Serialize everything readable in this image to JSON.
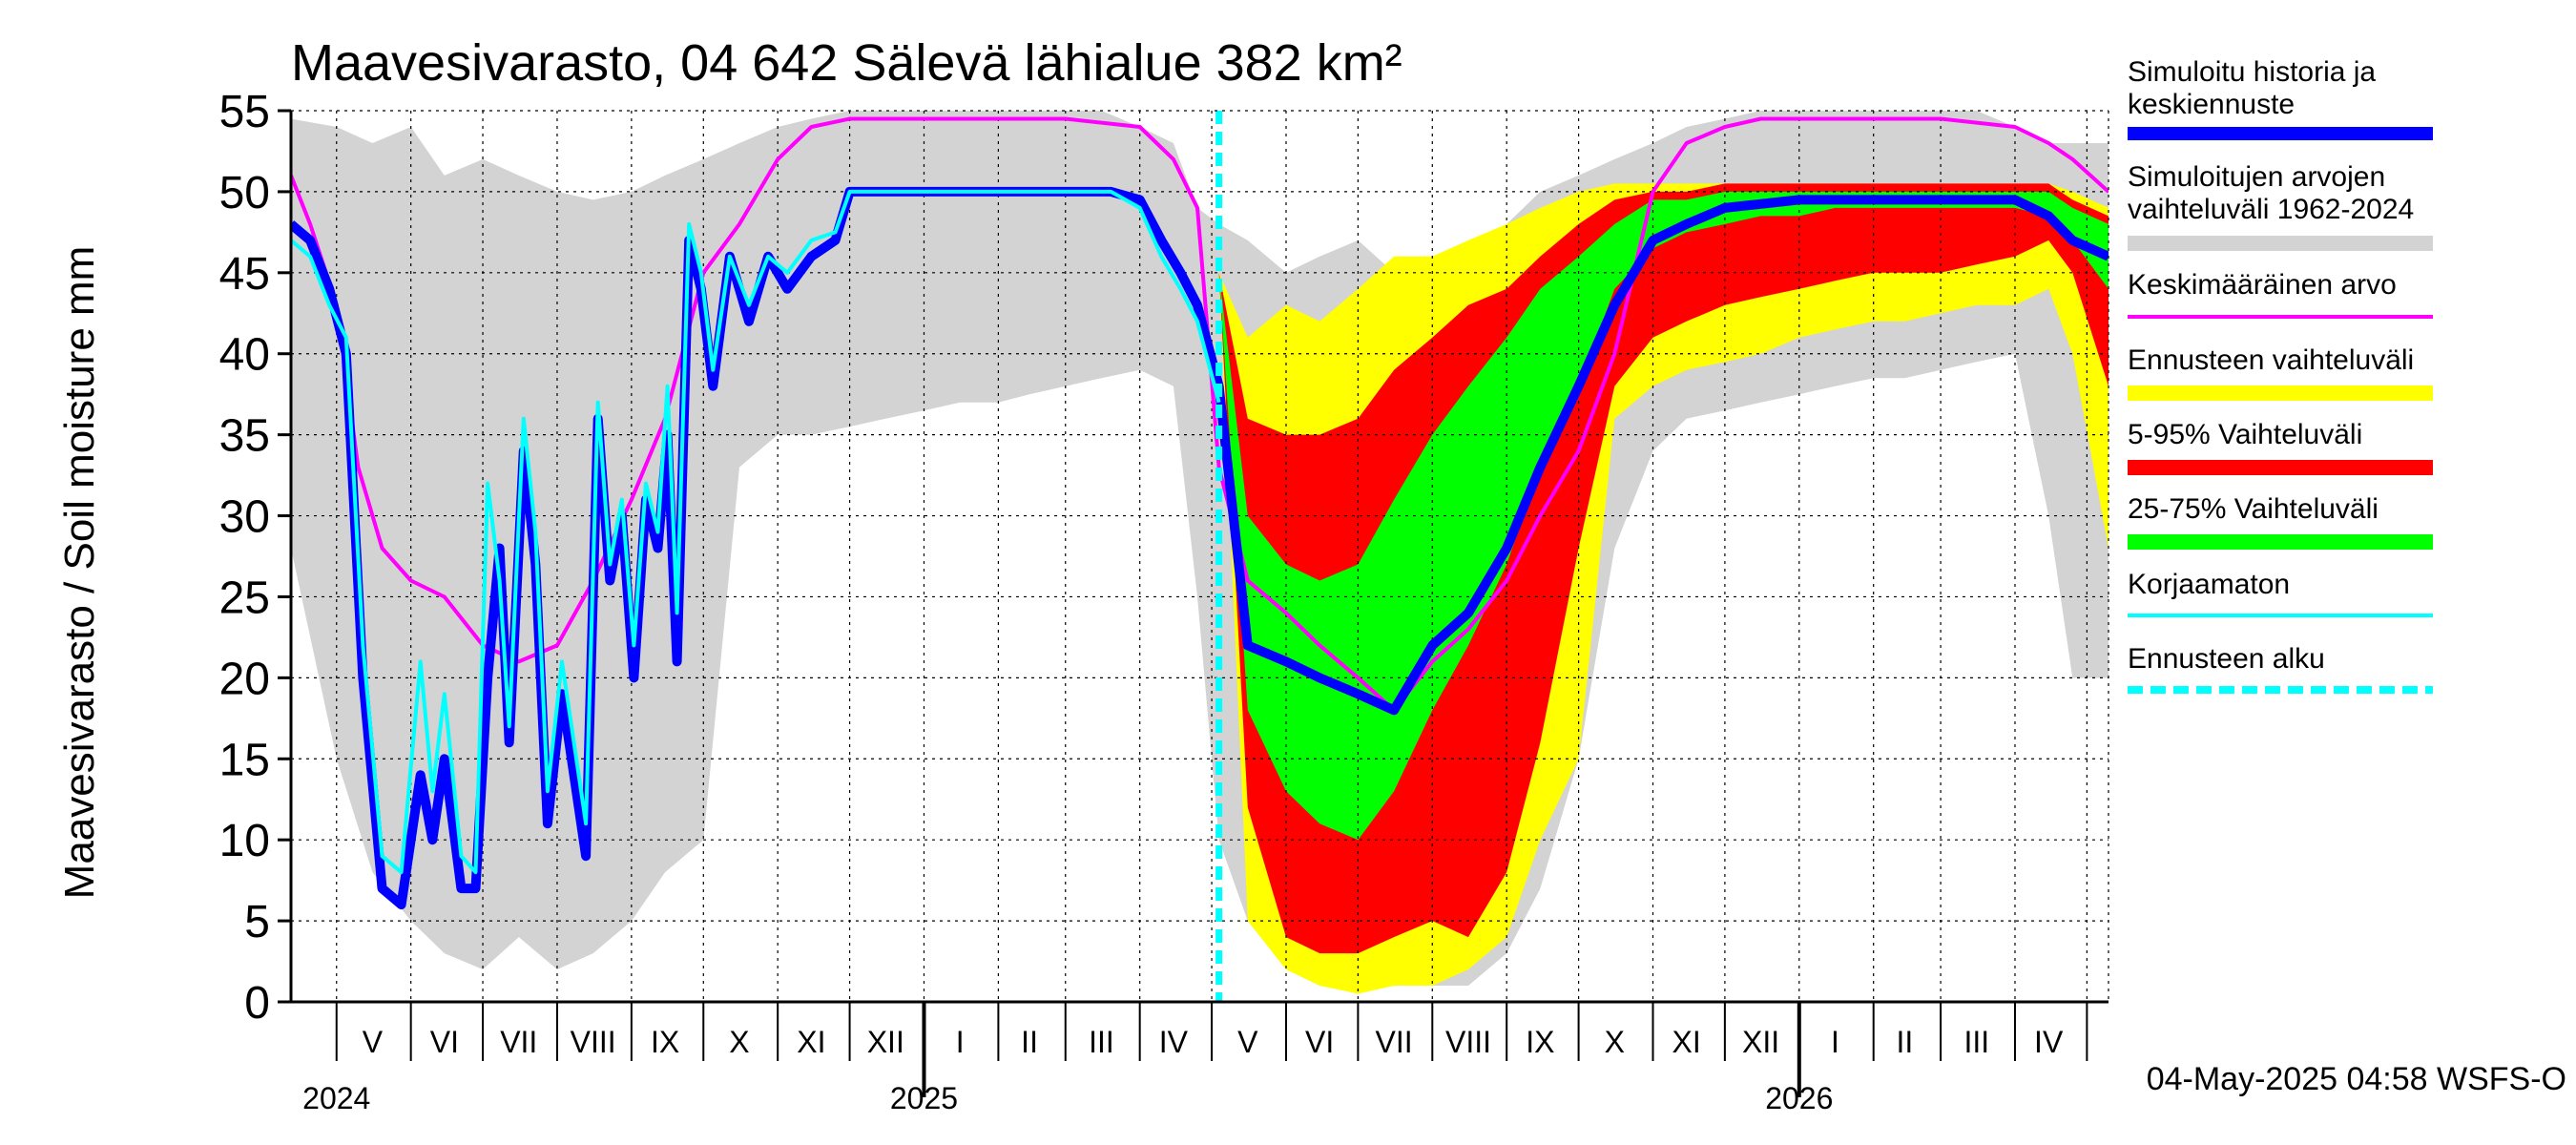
{
  "chart_data": {
    "type": "area",
    "title": "Maavesivarasto, 04 642 Sälevä lähialue 382 km²",
    "ylabel": "Maavesivarasto / Soil moisture   mm",
    "ylim": [
      0,
      55
    ],
    "yticks": [
      0,
      5,
      10,
      15,
      20,
      25,
      30,
      35,
      40,
      45,
      50,
      55
    ],
    "xlim": [
      "2024-04-12",
      "2026-05-10"
    ],
    "grid": true,
    "legend_position": "right",
    "forecast_start": "2025-05-04",
    "month_labels": [
      {
        "label": "V",
        "date": "2024-05-16"
      },
      {
        "label": "VI",
        "date": "2024-06-15"
      },
      {
        "label": "VII",
        "date": "2024-07-16"
      },
      {
        "label": "VIII",
        "date": "2024-08-16"
      },
      {
        "label": "IX",
        "date": "2024-09-15"
      },
      {
        "label": "X",
        "date": "2024-10-16"
      },
      {
        "label": "XI",
        "date": "2024-11-15"
      },
      {
        "label": "XII",
        "date": "2024-12-16"
      },
      {
        "label": "I",
        "date": "2025-01-16"
      },
      {
        "label": "II",
        "date": "2025-02-14"
      },
      {
        "label": "III",
        "date": "2025-03-16"
      },
      {
        "label": "IV",
        "date": "2025-04-15"
      },
      {
        "label": "V",
        "date": "2025-05-16"
      },
      {
        "label": "VI",
        "date": "2025-06-15"
      },
      {
        "label": "VII",
        "date": "2025-07-16"
      },
      {
        "label": "VIII",
        "date": "2025-08-16"
      },
      {
        "label": "IX",
        "date": "2025-09-15"
      },
      {
        "label": "X",
        "date": "2025-10-16"
      },
      {
        "label": "XI",
        "date": "2025-11-15"
      },
      {
        "label": "XII",
        "date": "2025-12-16"
      },
      {
        "label": "I",
        "date": "2026-01-16"
      },
      {
        "label": "II",
        "date": "2026-02-14"
      },
      {
        "label": "III",
        "date": "2026-03-16"
      },
      {
        "label": "IV",
        "date": "2026-04-15"
      }
    ],
    "year_labels": [
      {
        "label": "2024",
        "date": "2024-05-01"
      },
      {
        "label": "2025",
        "date": "2025-01-01"
      },
      {
        "label": "2026",
        "date": "2026-01-01"
      }
    ],
    "legend": [
      {
        "label": "Simuloitu historia ja keskiennuste",
        "color": "#0000ff",
        "style": "thick"
      },
      {
        "label": "Simuloitujen arvojen vaihteluväli 1962-2024",
        "color": "#d3d3d3",
        "style": "band"
      },
      {
        "label": "Keskimääräinen arvo",
        "color": "#ff00ff",
        "style": "line"
      },
      {
        "label": "Ennusteen vaihteluväli",
        "color": "#ffff00",
        "style": "band"
      },
      {
        "label": "5-95% Vaihteluväli",
        "color": "#ff0000",
        "style": "band"
      },
      {
        "label": "25-75% Vaihteluväli",
        "color": "#00ff00",
        "style": "band"
      },
      {
        "label": "Korjaamaton",
        "color": "#00ffff",
        "style": "line"
      },
      {
        "label": "Ennusteen alku",
        "color": "#00ffff",
        "style": "dashed"
      }
    ],
    "series": [
      {
        "name": "Simuloitujen arvojen vaihteluväli 1962-2024",
        "kind": "band",
        "color": "#d3d3d3",
        "x": [
          "2024-04-12",
          "2024-05-01",
          "2024-05-16",
          "2024-06-01",
          "2024-06-15",
          "2024-07-01",
          "2024-07-16",
          "2024-08-01",
          "2024-08-16",
          "2024-09-01",
          "2024-09-15",
          "2024-10-01",
          "2024-10-16",
          "2024-11-01",
          "2024-11-15",
          "2024-12-01",
          "2024-12-16",
          "2025-01-01",
          "2025-01-16",
          "2025-02-01",
          "2025-02-14",
          "2025-03-01",
          "2025-03-16",
          "2025-04-01",
          "2025-04-15",
          "2025-04-25",
          "2025-05-04",
          "2025-05-16",
          "2025-06-01",
          "2025-06-15",
          "2025-07-01",
          "2025-07-16",
          "2025-08-01",
          "2025-08-16",
          "2025-09-01",
          "2025-09-15",
          "2025-10-01",
          "2025-10-16",
          "2025-11-01",
          "2025-11-15",
          "2025-12-01",
          "2025-12-16",
          "2026-01-01",
          "2026-01-16",
          "2026-02-01",
          "2026-02-14",
          "2026-03-01",
          "2026-03-16",
          "2026-04-01",
          "2026-04-15",
          "2026-04-25",
          "2026-05-10"
        ],
        "lower": [
          28,
          15,
          8,
          5,
          3,
          2,
          4,
          2,
          3,
          5,
          8,
          10,
          33,
          35,
          35,
          35.5,
          36,
          36.5,
          37,
          37,
          37.5,
          38,
          38.5,
          39,
          38,
          25,
          10,
          5,
          2,
          1,
          1,
          1,
          1,
          1,
          3,
          7,
          15,
          28,
          34,
          36,
          36.5,
          37,
          37.5,
          38,
          38.5,
          38.5,
          39,
          39.5,
          40,
          30,
          20,
          20
        ],
        "upper": [
          54.5,
          54,
          53,
          54,
          51,
          52,
          51,
          50,
          49.5,
          50,
          51,
          52,
          53,
          54,
          54.5,
          55,
          55,
          55,
          55,
          55,
          55,
          55,
          55,
          54,
          53,
          49,
          48,
          47,
          45,
          46,
          47,
          45,
          44,
          46,
          48,
          50,
          51,
          52,
          53,
          54,
          54.5,
          55,
          55,
          55,
          55,
          55,
          55,
          55,
          54,
          53,
          53,
          53
        ]
      },
      {
        "name": "Ennusteen vaihteluväli",
        "kind": "band",
        "color": "#ffff00",
        "x": [
          "2025-05-04",
          "2025-05-16",
          "2025-06-01",
          "2025-06-15",
          "2025-07-01",
          "2025-07-16",
          "2025-08-01",
          "2025-08-16",
          "2025-09-01",
          "2025-09-15",
          "2025-10-01",
          "2025-10-16",
          "2025-11-01",
          "2025-11-15",
          "2025-12-01",
          "2025-12-16",
          "2026-01-01",
          "2026-01-16",
          "2026-02-01",
          "2026-02-14",
          "2026-03-01",
          "2026-03-16",
          "2026-04-01",
          "2026-04-15",
          "2026-04-25",
          "2026-05-10"
        ],
        "lower": [
          45,
          5,
          2,
          1,
          0.5,
          1,
          1,
          2,
          4,
          10,
          15,
          36,
          38,
          39,
          39.5,
          40,
          41,
          41.5,
          42,
          42,
          42.5,
          43,
          43,
          44,
          40,
          28
        ],
        "upper": [
          45,
          41,
          43,
          42,
          44,
          46,
          46,
          47,
          48,
          49,
          50,
          50.5,
          50.5,
          50.5,
          50.5,
          50.5,
          50.5,
          50.5,
          50.5,
          50.5,
          50.5,
          50.5,
          50.5,
          50.5,
          50,
          49
        ]
      },
      {
        "name": "5-95% Vaihteluväli",
        "kind": "band",
        "color": "#ff0000",
        "x": [
          "2025-05-04",
          "2025-05-16",
          "2025-06-01",
          "2025-06-15",
          "2025-07-01",
          "2025-07-16",
          "2025-08-01",
          "2025-08-16",
          "2025-09-01",
          "2025-09-15",
          "2025-10-01",
          "2025-10-16",
          "2025-11-01",
          "2025-11-15",
          "2025-12-01",
          "2025-12-16",
          "2026-01-01",
          "2026-01-16",
          "2026-02-01",
          "2026-02-14",
          "2026-03-01",
          "2026-03-16",
          "2026-04-01",
          "2026-04-15",
          "2026-04-25",
          "2026-05-10"
        ],
        "lower": [
          45,
          12,
          4,
          3,
          3,
          4,
          5,
          4,
          8,
          16,
          28,
          38,
          41,
          42,
          43,
          43.5,
          44,
          44.5,
          45,
          45,
          45,
          45.5,
          46,
          47,
          45,
          38
        ],
        "upper": [
          45,
          36,
          35,
          35,
          36,
          39,
          41,
          43,
          44,
          46,
          48,
          49.5,
          50,
          50,
          50.5,
          50.5,
          50.5,
          50.5,
          50.5,
          50.5,
          50.5,
          50.5,
          50.5,
          50.5,
          49.5,
          48.5
        ]
      },
      {
        "name": "25-75% Vaihteluväli",
        "kind": "band",
        "color": "#00ff00",
        "x": [
          "2025-05-04",
          "2025-05-16",
          "2025-06-01",
          "2025-06-15",
          "2025-07-01",
          "2025-07-16",
          "2025-08-01",
          "2025-08-16",
          "2025-09-01",
          "2025-09-15",
          "2025-10-01",
          "2025-10-16",
          "2025-11-01",
          "2025-11-15",
          "2025-12-01",
          "2025-12-16",
          "2026-01-01",
          "2026-01-16",
          "2026-02-01",
          "2026-02-14",
          "2026-03-01",
          "2026-03-16",
          "2026-04-01",
          "2026-04-15",
          "2026-04-25",
          "2026-05-10"
        ],
        "lower": [
          45,
          18,
          13,
          11,
          10,
          13,
          18,
          22,
          27,
          33,
          38,
          44,
          46.5,
          47.5,
          48,
          48.5,
          48.5,
          49,
          49,
          49,
          49,
          49,
          49,
          48.5,
          47,
          44
        ],
        "upper": [
          45,
          30,
          27,
          26,
          27,
          31,
          35,
          38,
          41,
          44,
          46,
          48,
          49.5,
          49.5,
          50,
          50,
          50,
          50,
          50,
          50,
          50,
          50,
          50,
          50,
          49,
          48
        ]
      },
      {
        "name": "Keskimääräinen arvo",
        "kind": "line",
        "color": "#ff00ff",
        "x": [
          "2024-04-12",
          "2024-04-20",
          "2024-05-01",
          "2024-05-10",
          "2024-05-20",
          "2024-06-01",
          "2024-06-15",
          "2024-07-01",
          "2024-07-16",
          "2024-08-01",
          "2024-08-16",
          "2024-09-01",
          "2024-09-15",
          "2024-10-01",
          "2024-10-16",
          "2024-11-01",
          "2024-11-15",
          "2024-12-01",
          "2024-12-16",
          "2025-01-01",
          "2025-02-01",
          "2025-03-01",
          "2025-04-01",
          "2025-04-15",
          "2025-04-25",
          "2025-05-04",
          "2025-05-16",
          "2025-06-01",
          "2025-06-15",
          "2025-07-01",
          "2025-07-16",
          "2025-08-01",
          "2025-08-16",
          "2025-09-01",
          "2025-09-15",
          "2025-10-01",
          "2025-10-16",
          "2025-11-01",
          "2025-11-15",
          "2025-12-01",
          "2025-12-16",
          "2026-01-01",
          "2026-02-01",
          "2026-03-01",
          "2026-04-01",
          "2026-04-15",
          "2026-04-25",
          "2026-05-10"
        ],
        "values": [
          51,
          48,
          43,
          33,
          28,
          26,
          25,
          22,
          21,
          22,
          26,
          31,
          36,
          45,
          48,
          52,
          54,
          54.5,
          54.5,
          54.5,
          54.5,
          54.5,
          54,
          52,
          49,
          33,
          26,
          24,
          22,
          20,
          18,
          21,
          23,
          26,
          30,
          34,
          40,
          50,
          53,
          54,
          54.5,
          54.5,
          54.5,
          54.5,
          54,
          53,
          52,
          50
        ]
      },
      {
        "name": "Simuloitu historia ja keskiennuste",
        "kind": "line",
        "color": "#0000ff",
        "x": [
          "2024-04-12",
          "2024-04-20",
          "2024-04-28",
          "2024-05-05",
          "2024-05-12",
          "2024-05-20",
          "2024-05-28",
          "2024-06-05",
          "2024-06-10",
          "2024-06-15",
          "2024-06-22",
          "2024-06-28",
          "2024-07-03",
          "2024-07-08",
          "2024-07-12",
          "2024-07-18",
          "2024-07-23",
          "2024-07-28",
          "2024-08-03",
          "2024-08-08",
          "2024-08-13",
          "2024-08-18",
          "2024-08-23",
          "2024-08-28",
          "2024-09-02",
          "2024-09-07",
          "2024-09-12",
          "2024-09-16",
          "2024-09-20",
          "2024-09-25",
          "2024-09-30",
          "2024-10-05",
          "2024-10-12",
          "2024-10-20",
          "2024-10-28",
          "2024-11-05",
          "2024-11-15",
          "2024-11-25",
          "2024-12-01",
          "2024-12-10",
          "2025-01-01",
          "2025-02-01",
          "2025-03-01",
          "2025-03-20",
          "2025-04-01",
          "2025-04-10",
          "2025-04-18",
          "2025-04-25",
          "2025-05-04",
          "2025-05-16",
          "2025-06-01",
          "2025-06-15",
          "2025-07-01",
          "2025-07-16",
          "2025-08-01",
          "2025-08-16",
          "2025-09-01",
          "2025-09-15",
          "2025-10-01",
          "2025-10-16",
          "2025-11-01",
          "2025-11-15",
          "2025-12-01",
          "2026-01-01",
          "2026-02-01",
          "2026-03-01",
          "2026-04-01",
          "2026-04-15",
          "2026-04-25",
          "2026-05-10"
        ],
        "values": [
          48,
          47,
          44,
          40,
          20,
          7,
          6,
          14,
          10,
          15,
          7,
          7,
          20,
          28,
          16,
          34,
          27,
          11,
          19,
          14,
          9,
          36,
          26,
          30,
          20,
          31,
          28,
          35,
          21,
          47,
          44,
          38,
          46,
          42,
          46,
          44,
          46,
          47,
          50,
          50,
          50,
          50,
          50,
          50,
          49.5,
          47,
          45,
          43,
          38,
          22,
          21,
          20,
          19,
          18,
          22,
          24,
          28,
          33,
          38,
          43,
          47,
          48,
          49,
          49.5,
          49.5,
          49.5,
          49.5,
          48.5,
          47,
          46
        ]
      },
      {
        "name": "Korjaamaton",
        "kind": "line",
        "color": "#00ffff",
        "x": [
          "2024-04-12",
          "2024-04-20",
          "2024-04-28",
          "2024-05-05",
          "2024-05-12",
          "2024-05-20",
          "2024-05-28",
          "2024-06-05",
          "2024-06-10",
          "2024-06-15",
          "2024-06-22",
          "2024-06-28",
          "2024-07-03",
          "2024-07-08",
          "2024-07-12",
          "2024-07-18",
          "2024-07-23",
          "2024-07-28",
          "2024-08-03",
          "2024-08-08",
          "2024-08-13",
          "2024-08-18",
          "2024-08-23",
          "2024-08-28",
          "2024-09-02",
          "2024-09-07",
          "2024-09-12",
          "2024-09-16",
          "2024-09-20",
          "2024-09-25",
          "2024-09-30",
          "2024-10-05",
          "2024-10-12",
          "2024-10-20",
          "2024-10-28",
          "2024-11-05",
          "2024-11-15",
          "2024-11-25",
          "2024-12-01",
          "2024-12-10",
          "2025-01-01",
          "2025-02-01",
          "2025-03-01",
          "2025-03-20",
          "2025-04-01",
          "2025-04-10",
          "2025-04-18",
          "2025-04-25",
          "2025-05-04"
        ],
        "values": [
          47,
          46,
          43,
          41,
          22,
          9,
          8,
          21,
          13,
          19,
          9,
          8,
          32,
          26,
          17,
          36,
          29,
          13,
          21,
          16,
          11,
          37,
          27,
          31,
          22,
          32,
          29,
          38,
          24,
          48,
          45,
          39,
          46,
          43,
          46,
          45,
          47,
          47.5,
          50,
          50,
          50,
          50,
          50,
          50,
          49,
          46,
          44,
          42,
          37
        ]
      }
    ]
  },
  "footer": {
    "timestamp": "04-May-2025 04:58 WSFS-O"
  }
}
